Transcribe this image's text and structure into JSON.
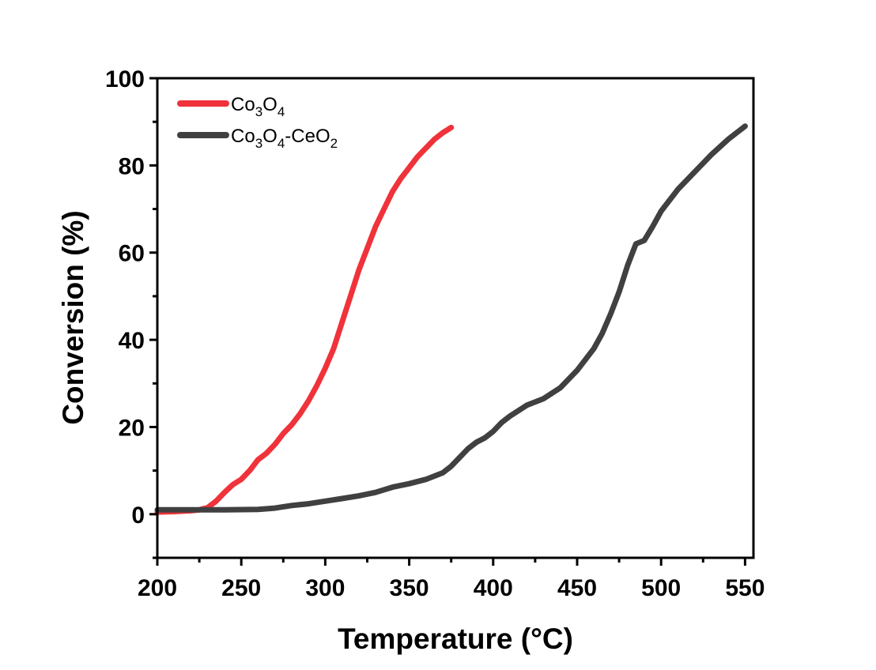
{
  "chart_data": {
    "type": "line",
    "title": "",
    "xlabel": "Temperature (°C)",
    "ylabel": "Conversion (%)",
    "xlim": [
      200,
      555
    ],
    "ylim": [
      -10,
      100
    ],
    "xticks": [
      200,
      250,
      300,
      350,
      400,
      450,
      500,
      550
    ],
    "yticks": [
      0,
      20,
      40,
      60,
      80,
      100
    ],
    "grid": false,
    "legend_position": "top-left",
    "series": [
      {
        "name": "Co3O4",
        "label_parts": [
          "Co",
          "3",
          "O",
          "4"
        ],
        "color": "#f0323a",
        "x": [
          200,
          210,
          220,
          225,
          230,
          235,
          240,
          245,
          250,
          255,
          260,
          265,
          270,
          275,
          280,
          285,
          290,
          295,
          300,
          305,
          310,
          315,
          320,
          325,
          330,
          335,
          340,
          345,
          350,
          355,
          360,
          365,
          370,
          375
        ],
        "y": [
          0.5,
          0.6,
          0.8,
          1.0,
          1.5,
          3.0,
          5.0,
          6.8,
          8.0,
          10.0,
          12.5,
          14.0,
          16.0,
          18.5,
          20.5,
          23.0,
          26.0,
          29.5,
          33.5,
          38.0,
          44.0,
          50.0,
          56.0,
          61.0,
          66.0,
          70.0,
          74.0,
          77.0,
          79.5,
          82.0,
          84.0,
          86.0,
          87.5,
          88.7
        ]
      },
      {
        "name": "Co3O4-CeO2",
        "label_parts": [
          "Co",
          "3",
          "O",
          "4",
          "-CeO",
          "2"
        ],
        "color": "#404040",
        "x": [
          200,
          220,
          240,
          260,
          270,
          280,
          290,
          300,
          310,
          320,
          330,
          340,
          350,
          360,
          370,
          375,
          380,
          385,
          390,
          395,
          400,
          405,
          410,
          420,
          430,
          440,
          450,
          460,
          465,
          470,
          475,
          480,
          485,
          490,
          495,
          500,
          505,
          510,
          520,
          530,
          540,
          550
        ],
        "y": [
          1.0,
          1.0,
          1.0,
          1.1,
          1.4,
          2.0,
          2.4,
          3.0,
          3.6,
          4.2,
          5.0,
          6.2,
          7.0,
          8.0,
          9.5,
          11.0,
          13.0,
          15.0,
          16.5,
          17.5,
          19.0,
          21.0,
          22.5,
          25.0,
          26.5,
          29.0,
          33.0,
          38.0,
          41.5,
          46.0,
          51.0,
          57.0,
          62.0,
          62.8,
          66.0,
          69.5,
          72.0,
          74.5,
          78.5,
          82.5,
          86.0,
          89.0
        ]
      }
    ]
  }
}
